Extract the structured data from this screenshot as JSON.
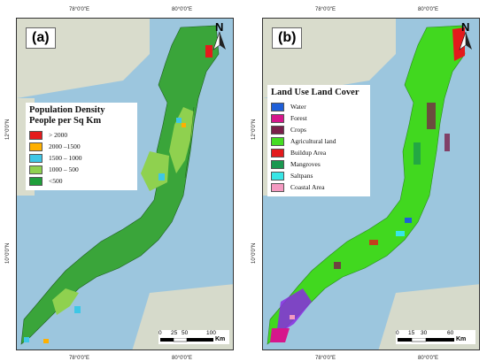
{
  "panels": [
    {
      "label": "(a)",
      "north": "N",
      "top_ticks": [
        "78°0'0\"E",
        "80°0'0\"E"
      ],
      "bottom_ticks": [
        "78°0'0\"E",
        "80°0'0\"E"
      ],
      "left_ticks": [
        "12°0'0\"N",
        "10°0'0\"N"
      ],
      "right_ticks": [
        "12°0'0\"N",
        "10°0'0\"N"
      ],
      "legend": {
        "title_line1": "Population Density",
        "title_line2": "People per Sq Km",
        "items": [
          {
            "label": "> 2000",
            "color": "#e41a1c"
          },
          {
            "label": "2000 –1500",
            "color": "#ffb000"
          },
          {
            "label": "1500 – 1000",
            "color": "#3ec7e6"
          },
          {
            "label": "1000 – 500",
            "color": "#8fd14f"
          },
          {
            "label": "<500",
            "color": "#1f9e3a"
          }
        ]
      },
      "scale": {
        "labels": [
          "0",
          "25",
          "50",
          "100"
        ],
        "unit": "Km"
      }
    },
    {
      "label": "(b)",
      "north": "N",
      "top_ticks": [
        "78°0'0\"E",
        "80°0'0\"E"
      ],
      "bottom_ticks": [
        "78°0'0\"E",
        "80°0'0\"E"
      ],
      "left_ticks": [
        "12°0'0\"N",
        "10°0'0\"N"
      ],
      "right_ticks": [
        "12°0'0\"N",
        "10°0'0\"N"
      ],
      "legend": {
        "title_line1": "Land Use Land Cover",
        "title_line2": "",
        "items": [
          {
            "label": "Water",
            "color": "#1f5fd8"
          },
          {
            "label": "Forest",
            "color": "#d6168c"
          },
          {
            "label": "Crops",
            "color": "#7a1f4a"
          },
          {
            "label": "Agricultural land",
            "color": "#44dd22"
          },
          {
            "label": "Buildup Area",
            "color": "#e31a1c"
          },
          {
            "label": "Mangroves",
            "color": "#1a9850"
          },
          {
            "label": "Saltpans",
            "color": "#38e6e6"
          },
          {
            "label": "Coastal Area",
            "color": "#f49ac1"
          }
        ]
      },
      "scale": {
        "labels": [
          "0",
          "15",
          "30",
          "60"
        ],
        "unit": "Km"
      }
    }
  ],
  "colors": {
    "sea": "#9cc6de",
    "land_bg": "#d9dccc",
    "region_a": "#3aa53a",
    "region_b": "#41d81f"
  }
}
